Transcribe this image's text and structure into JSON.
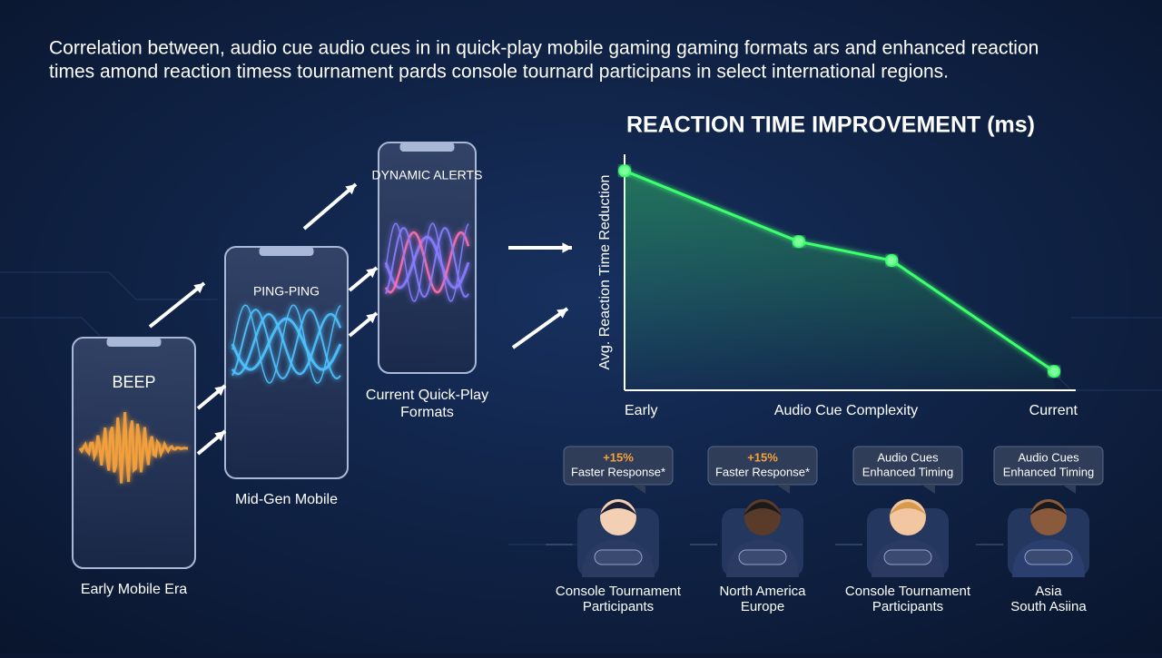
{
  "header": {
    "title_lines": [
      "Correlation between, audio cue audio cues in in quick-play mobile gaming gaming formats ars and enhanced reaction",
      "times amond reaction timess tournament pards console tournard participans in select international regions."
    ]
  },
  "phones": [
    {
      "label": "BEEP",
      "caption": [
        "Early Mobile Era"
      ]
    },
    {
      "label": "PING-PING",
      "caption": [
        "Mid-Gen Mobile"
      ]
    },
    {
      "label": "DYNAMIC ALERTS",
      "caption": [
        "Current Quick-Play",
        "Formats"
      ]
    }
  ],
  "chart_data": {
    "type": "line",
    "title": "REACTION TIME IMPROVEMENT (ms)",
    "y_label": "Avg. Reaction Time Reduction",
    "x_label": "Audio Cue Complexity",
    "x_start_label": "Early",
    "x_end_label": "Current",
    "x": [
      0,
      38.6,
      59.2,
      95.2
    ],
    "values": [
      93,
      63,
      55,
      8
    ],
    "xlim": [
      0,
      100
    ],
    "ylim": [
      0,
      100
    ],
    "color": "#3dff6e"
  },
  "personas": [
    {
      "bubble": [
        "+15%",
        "Faster Response*"
      ],
      "highlight": true,
      "caption": [
        "Console Tournament",
        "Participants"
      ]
    },
    {
      "bubble": [
        "+15%",
        "Faster Response*"
      ],
      "highlight": true,
      "caption": [
        "North America",
        "Europe"
      ]
    },
    {
      "bubble": [
        "Audio Cues",
        "Enhanced Timing"
      ],
      "highlight": false,
      "caption": [
        "Console Tournament",
        "Participants"
      ]
    },
    {
      "bubble": [
        "Audio Cues",
        "Enhanced Timing"
      ],
      "highlight": false,
      "caption": [
        "Asia",
        "South Asiina"
      ]
    }
  ]
}
